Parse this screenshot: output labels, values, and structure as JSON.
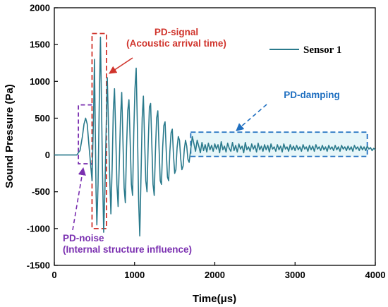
{
  "chart_data": {
    "type": "line",
    "xlabel": "Time(μs)",
    "ylabel": "Sound Pressure (Pa)",
    "xlim": [
      0,
      4000
    ],
    "ylim": [
      -1500,
      2000
    ],
    "xticks": [
      0,
      1000,
      2000,
      3000,
      4000
    ],
    "yticks": [
      -1500,
      -1000,
      -500,
      0,
      500,
      1000,
      1500,
      2000
    ],
    "grid": false,
    "legend": "top-right",
    "series": [
      {
        "name": "Sensor 1",
        "color": "#2a7a8c",
        "points": [
          [
            0,
            0
          ],
          [
            150,
            0
          ],
          [
            280,
            0
          ],
          [
            320,
            60
          ],
          [
            350,
            250
          ],
          [
            370,
            420
          ],
          [
            390,
            500
          ],
          [
            410,
            420
          ],
          [
            430,
            150
          ],
          [
            450,
            -100
          ],
          [
            470,
            -350
          ],
          [
            490,
            600
          ],
          [
            500,
            1300
          ],
          [
            510,
            400
          ],
          [
            520,
            -500
          ],
          [
            530,
            -950
          ],
          [
            545,
            -400
          ],
          [
            560,
            700
          ],
          [
            575,
            1600
          ],
          [
            585,
            900
          ],
          [
            600,
            -200
          ],
          [
            615,
            -1050
          ],
          [
            630,
            -500
          ],
          [
            645,
            300
          ],
          [
            660,
            1050
          ],
          [
            675,
            400
          ],
          [
            690,
            -300
          ],
          [
            705,
            -800
          ],
          [
            720,
            -200
          ],
          [
            735,
            600
          ],
          [
            750,
            900
          ],
          [
            765,
            300
          ],
          [
            780,
            -400
          ],
          [
            795,
            -700
          ],
          [
            810,
            -100
          ],
          [
            825,
            500
          ],
          [
            840,
            850
          ],
          [
            855,
            200
          ],
          [
            870,
            -450
          ],
          [
            885,
            -650
          ],
          [
            900,
            100
          ],
          [
            915,
            600
          ],
          [
            930,
            750
          ],
          [
            945,
            200
          ],
          [
            960,
            -400
          ],
          [
            975,
            -550
          ],
          [
            990,
            300
          ],
          [
            1005,
            900
          ],
          [
            1020,
            1180
          ],
          [
            1035,
            400
          ],
          [
            1050,
            -600
          ],
          [
            1065,
            -1100
          ],
          [
            1080,
            -300
          ],
          [
            1095,
            500
          ],
          [
            1110,
            800
          ],
          [
            1125,
            200
          ],
          [
            1140,
            -350
          ],
          [
            1155,
            -500
          ],
          [
            1170,
            150
          ],
          [
            1185,
            650
          ],
          [
            1200,
            700
          ],
          [
            1215,
            150
          ],
          [
            1230,
            -400
          ],
          [
            1245,
            -550
          ],
          [
            1260,
            50
          ],
          [
            1275,
            500
          ],
          [
            1290,
            600
          ],
          [
            1305,
            100
          ],
          [
            1320,
            -350
          ],
          [
            1335,
            -400
          ],
          [
            1350,
            100
          ],
          [
            1365,
            400
          ],
          [
            1380,
            450
          ],
          [
            1395,
            50
          ],
          [
            1410,
            -300
          ],
          [
            1425,
            -350
          ],
          [
            1440,
            50
          ],
          [
            1455,
            300
          ],
          [
            1470,
            350
          ],
          [
            1485,
            0
          ],
          [
            1500,
            -250
          ],
          [
            1515,
            -200
          ],
          [
            1530,
            100
          ],
          [
            1545,
            250
          ],
          [
            1560,
            200
          ],
          [
            1575,
            -50
          ],
          [
            1590,
            -200
          ],
          [
            1605,
            -150
          ],
          [
            1620,
            80
          ],
          [
            1635,
            200
          ],
          [
            1650,
            120
          ],
          [
            1665,
            -60
          ],
          [
            1680,
            -100
          ],
          [
            1700,
            80
          ],
          [
            1720,
            250
          ],
          [
            1740,
            150
          ],
          [
            1760,
            50
          ],
          [
            1780,
            200
          ],
          [
            1800,
            120
          ],
          [
            1820,
            30
          ],
          [
            1840,
            170
          ],
          [
            1860,
            60
          ],
          [
            1880,
            140
          ],
          [
            1900,
            40
          ],
          [
            1920,
            160
          ],
          [
            1940,
            70
          ],
          [
            1960,
            130
          ],
          [
            1980,
            50
          ],
          [
            2000,
            150
          ],
          [
            2020,
            80
          ],
          [
            2040,
            140
          ],
          [
            2060,
            30
          ],
          [
            2080,
            180
          ],
          [
            2100,
            70
          ],
          [
            2120,
            120
          ],
          [
            2140,
            40
          ],
          [
            2160,
            160
          ],
          [
            2180,
            90
          ],
          [
            2200,
            50
          ],
          [
            2220,
            170
          ],
          [
            2240,
            60
          ],
          [
            2260,
            130
          ],
          [
            2280,
            40
          ],
          [
            2300,
            150
          ],
          [
            2320,
            80
          ],
          [
            2340,
            120
          ],
          [
            2360,
            30
          ],
          [
            2380,
            170
          ],
          [
            2400,
            70
          ],
          [
            2420,
            110
          ],
          [
            2440,
            50
          ],
          [
            2460,
            150
          ],
          [
            2480,
            80
          ],
          [
            2500,
            130
          ],
          [
            2520,
            40
          ],
          [
            2540,
            160
          ],
          [
            2560,
            70
          ],
          [
            2580,
            120
          ],
          [
            2600,
            50
          ],
          [
            2620,
            140
          ],
          [
            2640,
            70
          ],
          [
            2660,
            130
          ],
          [
            2680,
            40
          ],
          [
            2700,
            150
          ],
          [
            2720,
            80
          ],
          [
            2740,
            110
          ],
          [
            2760,
            50
          ],
          [
            2780,
            140
          ],
          [
            2800,
            70
          ],
          [
            2820,
            120
          ],
          [
            2840,
            40
          ],
          [
            2860,
            150
          ],
          [
            2880,
            80
          ],
          [
            2900,
            110
          ],
          [
            2920,
            50
          ],
          [
            2940,
            140
          ],
          [
            2960,
            70
          ],
          [
            2980,
            120
          ],
          [
            3000,
            60
          ],
          [
            3020,
            130
          ],
          [
            3040,
            70
          ],
          [
            3060,
            110
          ],
          [
            3080,
            50
          ],
          [
            3100,
            140
          ],
          [
            3120,
            80
          ],
          [
            3140,
            110
          ],
          [
            3160,
            50
          ],
          [
            3180,
            130
          ],
          [
            3200,
            70
          ],
          [
            3220,
            120
          ],
          [
            3240,
            50
          ],
          [
            3260,
            140
          ],
          [
            3280,
            80
          ],
          [
            3300,
            110
          ],
          [
            3320,
            60
          ],
          [
            3340,
            130
          ],
          [
            3360,
            70
          ],
          [
            3380,
            110
          ],
          [
            3400,
            50
          ],
          [
            3420,
            130
          ],
          [
            3440,
            80
          ],
          [
            3460,
            110
          ],
          [
            3480,
            60
          ],
          [
            3500,
            130
          ],
          [
            3520,
            70
          ],
          [
            3540,
            110
          ],
          [
            3560,
            50
          ],
          [
            3580,
            130
          ],
          [
            3600,
            80
          ],
          [
            3620,
            110
          ],
          [
            3640,
            60
          ],
          [
            3660,
            120
          ],
          [
            3680,
            70
          ],
          [
            3700,
            110
          ],
          [
            3720,
            50
          ],
          [
            3740,
            130
          ],
          [
            3760,
            80
          ],
          [
            3780,
            110
          ],
          [
            3800,
            60
          ],
          [
            3820,
            120
          ],
          [
            3840,
            70
          ],
          [
            3860,
            110
          ],
          [
            3880,
            60
          ],
          [
            3900,
            120
          ],
          [
            3920,
            80
          ],
          [
            3940,
            100
          ],
          [
            3960,
            60
          ],
          [
            3980,
            90
          ],
          [
            4000,
            70
          ]
        ]
      }
    ],
    "annotations": [
      {
        "id": "pd-signal",
        "lines": [
          "PD-signal",
          "(Acoustic arrival time)"
        ],
        "color": "#d0342c",
        "box_x": [
          470,
          650
        ],
        "box_y": [
          -1000,
          1650
        ]
      },
      {
        "id": "pd-damping",
        "lines": [
          "PD-damping"
        ],
        "color": "#1f6fc0",
        "box_x": [
          1700,
          3900
        ],
        "box_y": [
          -20,
          310
        ]
      },
      {
        "id": "pd-noise",
        "lines": [
          "PD-noise",
          "(Internal structure influence)"
        ],
        "color": "#7a2fb0",
        "box_x": [
          300,
          470
        ],
        "box_y": [
          -120,
          680
        ]
      }
    ]
  }
}
